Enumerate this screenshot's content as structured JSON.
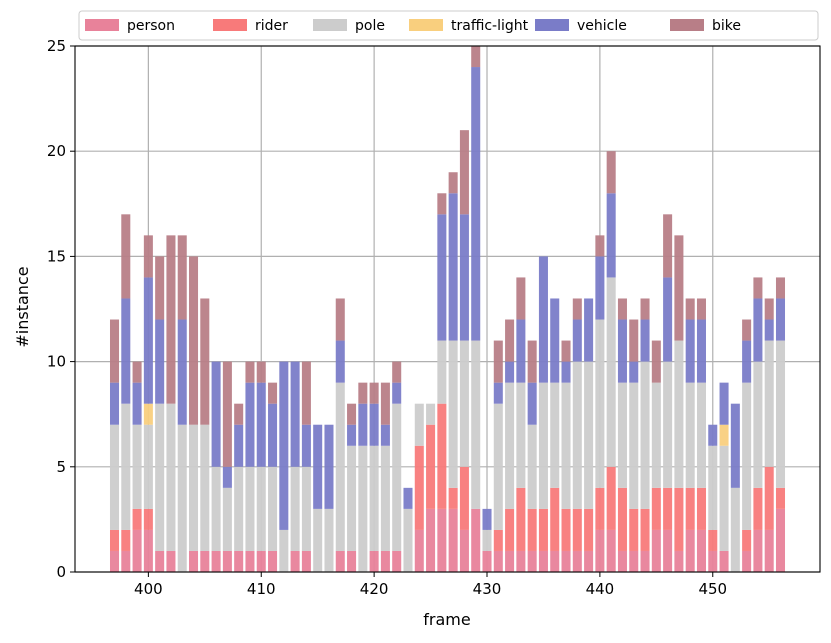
{
  "chart_data": {
    "type": "bar",
    "stacked": true,
    "title": "",
    "xlabel": "frame",
    "ylabel": "#instance",
    "xlim": [
      393.5,
      459.5
    ],
    "ylim": [
      0,
      25
    ],
    "xticks": [
      400,
      410,
      420,
      430,
      440,
      450
    ],
    "yticks": [
      0,
      5,
      10,
      15,
      20,
      25
    ],
    "grid": true,
    "legend_position": "top",
    "frames": [
      397,
      398,
      399,
      400,
      401,
      402,
      403,
      404,
      405,
      406,
      407,
      408,
      409,
      410,
      411,
      412,
      413,
      414,
      415,
      416,
      417,
      418,
      419,
      420,
      421,
      422,
      423,
      424,
      425,
      426,
      427,
      428,
      429,
      430,
      431,
      432,
      433,
      434,
      435,
      436,
      437,
      438,
      439,
      440,
      441,
      442,
      443,
      444,
      445,
      446,
      447,
      448,
      449,
      450,
      451,
      452,
      453,
      454,
      455,
      456
    ],
    "series": [
      {
        "name": "person",
        "color": "#e8829a",
        "values": [
          1,
          1,
          2,
          2,
          1,
          1,
          0,
          1,
          1,
          1,
          1,
          1,
          1,
          1,
          1,
          0,
          1,
          1,
          0,
          0,
          1,
          1,
          0,
          1,
          1,
          1,
          0,
          2,
          3,
          3,
          3,
          2,
          3,
          1,
          1,
          1,
          1,
          1,
          1,
          1,
          1,
          1,
          1,
          2,
          2,
          1,
          1,
          1,
          2,
          2,
          1,
          2,
          2,
          1,
          1,
          0,
          1,
          2,
          2,
          3
        ]
      },
      {
        "name": "rider",
        "color": "#f87a7a",
        "values": [
          1,
          1,
          1,
          1,
          0,
          0,
          0,
          0,
          0,
          0,
          0,
          0,
          0,
          0,
          0,
          0,
          0,
          0,
          0,
          0,
          0,
          0,
          0,
          0,
          0,
          0,
          0,
          4,
          4,
          5,
          1,
          3,
          0,
          0,
          1,
          2,
          3,
          2,
          2,
          3,
          2,
          2,
          2,
          2,
          3,
          3,
          2,
          2,
          2,
          2,
          3,
          2,
          2,
          1,
          0,
          0,
          1,
          2,
          3,
          1
        ]
      },
      {
        "name": "pole",
        "color": "#cccccc",
        "values": [
          5,
          6,
          4,
          4,
          7,
          7,
          7,
          6,
          6,
          4,
          3,
          4,
          4,
          4,
          4,
          2,
          4,
          4,
          3,
          3,
          8,
          5,
          6,
          5,
          5,
          7,
          3,
          2,
          1,
          3,
          7,
          6,
          8,
          1,
          6,
          6,
          5,
          4,
          6,
          5,
          6,
          7,
          7,
          8,
          9,
          5,
          6,
          7,
          5,
          6,
          7,
          5,
          5,
          4,
          5,
          4,
          7,
          6,
          6,
          7
        ]
      },
      {
        "name": "traffic-light",
        "color": "#f9cf7e",
        "values": [
          0,
          0,
          0,
          1,
          0,
          0,
          0,
          0,
          0,
          0,
          0,
          0,
          0,
          0,
          0,
          0,
          0,
          0,
          0,
          0,
          0,
          0,
          0,
          0,
          0,
          0,
          0,
          0,
          0,
          0,
          0,
          0,
          0,
          0,
          0,
          0,
          0,
          0,
          0,
          0,
          0,
          0,
          0,
          0,
          0,
          0,
          0,
          0,
          0,
          0,
          0,
          0,
          0,
          0,
          1,
          0,
          0,
          0,
          0,
          0
        ]
      },
      {
        "name": "vehicle",
        "color": "#7a7cc8",
        "values": [
          2,
          5,
          2,
          6,
          4,
          0,
          5,
          0,
          0,
          5,
          1,
          2,
          4,
          4,
          3,
          8,
          5,
          2,
          4,
          4,
          2,
          1,
          2,
          2,
          1,
          1,
          1,
          0,
          0,
          6,
          7,
          6,
          13,
          1,
          1,
          1,
          3,
          2,
          6,
          4,
          1,
          2,
          3,
          3,
          4,
          3,
          1,
          2,
          0,
          4,
          0,
          3,
          3,
          1,
          2,
          4,
          2,
          3,
          1,
          2
        ]
      },
      {
        "name": "bike",
        "color": "#b87e87",
        "values": [
          3,
          4,
          1,
          2,
          3,
          8,
          4,
          8,
          6,
          0,
          5,
          1,
          1,
          1,
          1,
          0,
          0,
          3,
          0,
          0,
          2,
          1,
          1,
          1,
          2,
          1,
          0,
          0,
          0,
          1,
          1,
          4,
          1,
          0,
          2,
          2,
          2,
          2,
          0,
          0,
          1,
          1,
          0,
          1,
          2,
          1,
          2,
          1,
          2,
          3,
          5,
          1,
          1,
          0,
          0,
          0,
          1,
          1,
          1,
          1
        ]
      }
    ]
  }
}
